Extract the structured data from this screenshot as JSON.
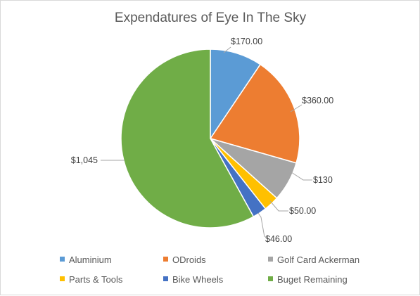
{
  "chart_data": {
    "type": "pie",
    "title": "Expendatures of Eye In The Sky",
    "legend_position": "bottom",
    "slices": [
      {
        "name": "Aluminium",
        "value": 170,
        "label": "$170.00",
        "color": "#5B9BD5"
      },
      {
        "name": "ODroids",
        "value": 360,
        "label": "$360.00",
        "color": "#ED7D31"
      },
      {
        "name": "Golf Card Ackerman",
        "value": 130,
        "label": "$130",
        "color": "#A5A5A5"
      },
      {
        "name": "Parts & Tools",
        "value": 50,
        "label": "$50.00",
        "color": "#FFC000"
      },
      {
        "name": "Bike Wheels",
        "value": 46,
        "label": "$46.00",
        "color": "#4472C4"
      },
      {
        "name": "Buget Remaining",
        "value": 1045,
        "label": "$1,045",
        "color": "#70AD47"
      }
    ]
  }
}
